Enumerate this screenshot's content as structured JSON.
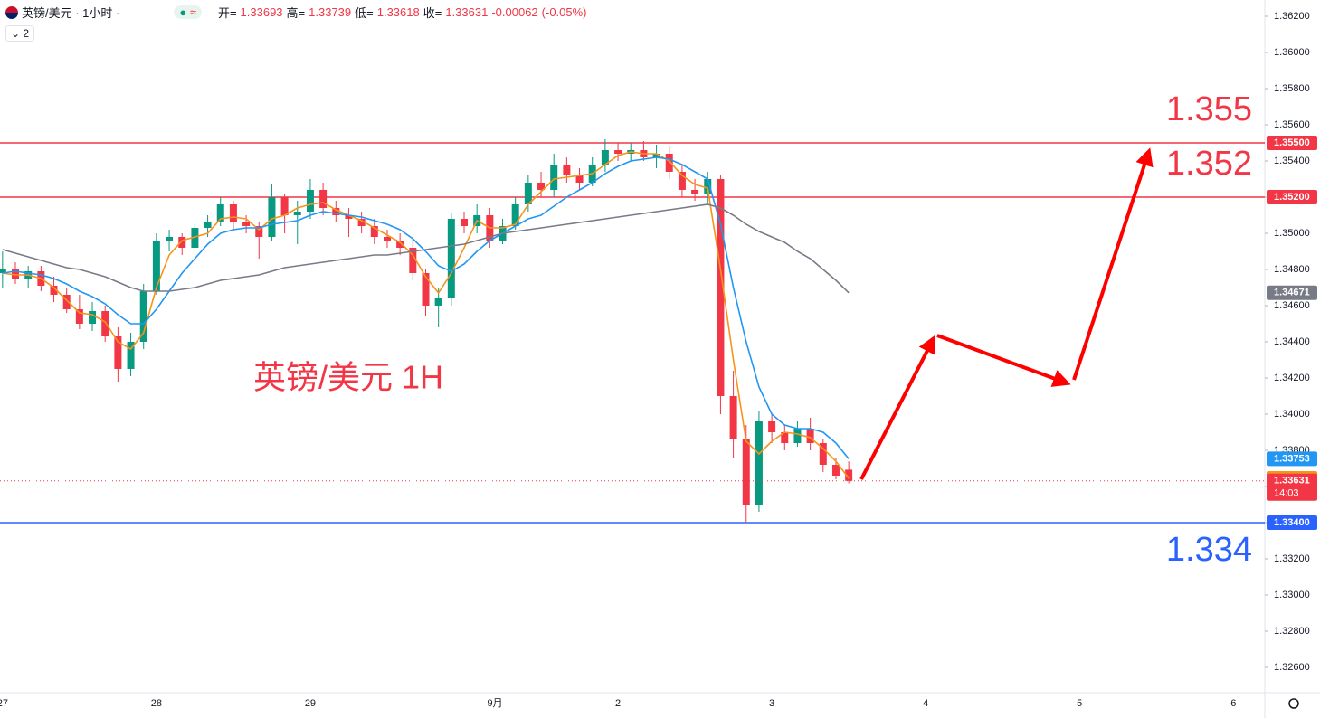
{
  "header": {
    "symbol": "英镑/美元 · 1小时 ·",
    "approx_icon": "≈",
    "open_label": "开=",
    "open": 1.33693,
    "high_label": "高=",
    "high": 1.33739,
    "low_label": "低=",
    "low": 1.33618,
    "close_label": "收=",
    "close": 1.33631,
    "change": -0.00062,
    "change_pct": "(-0.05%)",
    "indicators": 2
  },
  "chart_data": {
    "type": "candlestick",
    "up_color": "#089981",
    "down_color": "#f23645",
    "open": [
      1.3478,
      1.348,
      1.3475,
      1.3479,
      1.3471,
      1.3466,
      1.3458,
      1.345,
      1.3457,
      1.3443,
      1.3425,
      1.344,
      1.3468,
      1.3496,
      1.3498,
      1.3492,
      1.3503,
      1.3506,
      1.3516,
      1.3506,
      1.3504,
      1.3498,
      1.352,
      1.351,
      1.3512,
      1.3524,
      1.3514,
      1.351,
      1.3508,
      1.3504,
      1.3498,
      1.3496,
      1.3492,
      1.3478,
      1.346,
      1.3464,
      1.3508,
      1.3504,
      1.351,
      1.3496,
      1.3504,
      1.3516,
      1.3528,
      1.3524,
      1.3538,
      1.3532,
      1.3528,
      1.3538,
      1.3546,
      1.3544,
      1.3546,
      1.3542,
      1.3544,
      1.3534,
      1.3524,
      1.3522,
      1.353,
      1.341,
      1.3386,
      1.335,
      1.3396,
      1.339,
      1.3384,
      1.3392,
      1.3384,
      1.3372,
      1.33693
    ],
    "high": [
      1.349,
      1.3484,
      1.3482,
      1.3482,
      1.3476,
      1.347,
      1.3466,
      1.3462,
      1.346,
      1.3448,
      1.3445,
      1.3472,
      1.35,
      1.3502,
      1.35,
      1.3505,
      1.351,
      1.352,
      1.3518,
      1.351,
      1.3506,
      1.3527,
      1.3522,
      1.3518,
      1.353,
      1.3528,
      1.3518,
      1.3514,
      1.3512,
      1.3508,
      1.3502,
      1.35,
      1.3498,
      1.348,
      1.347,
      1.3511,
      1.3512,
      1.3516,
      1.3514,
      1.3508,
      1.352,
      1.3532,
      1.3534,
      1.3544,
      1.3542,
      1.3536,
      1.3542,
      1.3552,
      1.355,
      1.355,
      1.3551,
      1.3549,
      1.3548,
      1.3538,
      1.353,
      1.3534,
      1.3532,
      1.3424,
      1.3394,
      1.3402,
      1.34,
      1.3394,
      1.3396,
      1.3398,
      1.3386,
      1.3376,
      1.33739
    ],
    "low": [
      1.347,
      1.3472,
      1.347,
      1.3468,
      1.3462,
      1.3456,
      1.3447,
      1.3446,
      1.344,
      1.3418,
      1.3421,
      1.3436,
      1.3466,
      1.349,
      1.3488,
      1.349,
      1.3498,
      1.3504,
      1.3502,
      1.35,
      1.3486,
      1.3496,
      1.35,
      1.3494,
      1.3508,
      1.351,
      1.3506,
      1.3498,
      1.35,
      1.3494,
      1.3492,
      1.3488,
      1.3474,
      1.3454,
      1.3448,
      1.346,
      1.35,
      1.35,
      1.3492,
      1.3494,
      1.3502,
      1.3512,
      1.352,
      1.352,
      1.3528,
      1.3524,
      1.3526,
      1.3534,
      1.354,
      1.354,
      1.354,
      1.3536,
      1.353,
      1.352,
      1.3518,
      1.3516,
      1.34,
      1.3376,
      1.334,
      1.3346,
      1.3384,
      1.338,
      1.3382,
      1.338,
      1.3368,
      1.3364,
      1.33618
    ],
    "close": [
      1.348,
      1.3475,
      1.3479,
      1.3471,
      1.3466,
      1.3458,
      1.345,
      1.3457,
      1.3443,
      1.3425,
      1.344,
      1.3468,
      1.3496,
      1.3498,
      1.3492,
      1.3503,
      1.3506,
      1.3516,
      1.3506,
      1.3504,
      1.3498,
      1.352,
      1.351,
      1.3512,
      1.3524,
      1.3514,
      1.351,
      1.3508,
      1.3504,
      1.3498,
      1.3496,
      1.3492,
      1.3478,
      1.346,
      1.3464,
      1.3508,
      1.3504,
      1.351,
      1.3496,
      1.3504,
      1.3516,
      1.3528,
      1.3524,
      1.3538,
      1.3532,
      1.3528,
      1.3538,
      1.3546,
      1.3544,
      1.3546,
      1.3542,
      1.3544,
      1.3534,
      1.3524,
      1.3522,
      1.353,
      1.341,
      1.3386,
      1.335,
      1.3396,
      1.339,
      1.3384,
      1.3392,
      1.3384,
      1.3372,
      1.3366,
      1.33631
    ],
    "close_color": "#f23645",
    "countdown": "14:03",
    "series": [
      {
        "color": "#f7931a",
        "values": [
          1.3478,
          1.3477,
          1.3477,
          1.3475,
          1.347,
          1.3463,
          1.3456,
          1.3455,
          1.3451,
          1.344,
          1.3436,
          1.3445,
          1.347,
          1.3488,
          1.3496,
          1.3498,
          1.35,
          1.3508,
          1.3509,
          1.3508,
          1.3502,
          1.3508,
          1.351,
          1.3514,
          1.3516,
          1.3517,
          1.3513,
          1.351,
          1.3507,
          1.3503,
          1.3499,
          1.3495,
          1.3488,
          1.3476,
          1.3467,
          1.3478,
          1.3492,
          1.3507,
          1.3503,
          1.3503,
          1.3505,
          1.3516,
          1.3523,
          1.353,
          1.3531,
          1.3532,
          1.3533,
          1.3538,
          1.3543,
          1.3545,
          1.3544,
          1.3544,
          1.354,
          1.3532,
          1.3527,
          1.3525,
          1.348,
          1.343,
          1.3385,
          1.3378,
          1.3385,
          1.339,
          1.3389,
          1.3387,
          1.3381,
          1.3374,
          1.33645
        ]
      },
      {
        "color": "#2196f3",
        "values": [
          1.3478,
          1.3479,
          1.3478,
          1.3477,
          1.3475,
          1.3472,
          1.3468,
          1.3465,
          1.3461,
          1.3455,
          1.345,
          1.345,
          1.3458,
          1.3468,
          1.3478,
          1.3486,
          1.3494,
          1.35,
          1.3502,
          1.3503,
          1.3503,
          1.3505,
          1.3506,
          1.3507,
          1.351,
          1.3512,
          1.3511,
          1.351,
          1.3509,
          1.3507,
          1.3505,
          1.3502,
          1.3497,
          1.349,
          1.3482,
          1.3479,
          1.3483,
          1.349,
          1.3496,
          1.35,
          1.3504,
          1.3508,
          1.351,
          1.3515,
          1.352,
          1.3524,
          1.3528,
          1.3533,
          1.3537,
          1.354,
          1.3541,
          1.3542,
          1.3541,
          1.3538,
          1.3534,
          1.353,
          1.3505,
          1.347,
          1.344,
          1.3415,
          1.34,
          1.3394,
          1.3392,
          1.3392,
          1.339,
          1.3384,
          1.33753
        ]
      },
      {
        "color": "#787b86",
        "values": [
          1.3491,
          1.3489,
          1.3487,
          1.3485,
          1.3483,
          1.3481,
          1.348,
          1.3478,
          1.3476,
          1.3473,
          1.347,
          1.3468,
          1.3468,
          1.3468,
          1.3469,
          1.347,
          1.3472,
          1.3474,
          1.3475,
          1.3476,
          1.3477,
          1.3479,
          1.3481,
          1.3482,
          1.3483,
          1.3484,
          1.3485,
          1.3486,
          1.3487,
          1.3488,
          1.3488,
          1.3489,
          1.349,
          1.3491,
          1.3492,
          1.3493,
          1.3494,
          1.3496,
          1.3498,
          1.35,
          1.3501,
          1.3502,
          1.3503,
          1.3504,
          1.3505,
          1.3506,
          1.3507,
          1.3508,
          1.3509,
          1.351,
          1.3511,
          1.3512,
          1.3513,
          1.3514,
          1.3515,
          1.3516,
          1.3514,
          1.351,
          1.3505,
          1.3501,
          1.3498,
          1.3495,
          1.349,
          1.3486,
          1.348,
          1.3474,
          1.34671
        ]
      }
    ],
    "hlines": [
      {
        "value": 1.355,
        "label": "1.35500",
        "color": "#f23645"
      },
      {
        "value": 1.352,
        "label": "1.35200",
        "color": "#f23645"
      },
      {
        "value": 1.334,
        "label": "1.33400",
        "color": "#2962ff"
      }
    ],
    "annotations": [
      {
        "text": "1.355",
        "color": "#f23645"
      },
      {
        "text": "1.352",
        "color": "#f23645"
      },
      {
        "text": "1.334",
        "color": "#2962ff"
      },
      {
        "text": "英镑/美元 1H",
        "color": "#f23645"
      }
    ],
    "xlim": [
      -0.2,
      98.45
    ],
    "ylim": [
      1.3246,
      1.3629
    ],
    "xticks": [
      {
        "value": 0,
        "label": "27"
      },
      {
        "value": 12,
        "label": "28"
      },
      {
        "value": 24,
        "label": "29"
      },
      {
        "value": 38.4,
        "label": "9月"
      },
      {
        "value": 48,
        "label": "2"
      },
      {
        "value": 60,
        "label": "3"
      },
      {
        "value": 72,
        "label": "4"
      },
      {
        "value": 84,
        "label": "5"
      },
      {
        "value": 96,
        "label": "6"
      }
    ],
    "yticks": [
      {
        "value": 1.362,
        "label": "1.36200"
      },
      {
        "value": 1.36,
        "label": "1.36000"
      },
      {
        "value": 1.358,
        "label": "1.35800"
      },
      {
        "value": 1.356,
        "label": "1.35600"
      },
      {
        "value": 1.354,
        "label": "1.35400"
      },
      {
        "value": 1.352,
        "label": "1.35200"
      },
      {
        "value": 1.35,
        "label": "1.35000"
      },
      {
        "value": 1.348,
        "label": "1.34800"
      },
      {
        "value": 1.346,
        "label": "1.34600"
      },
      {
        "value": 1.344,
        "label": "1.34400"
      },
      {
        "value": 1.342,
        "label": "1.34200"
      },
      {
        "value": 1.34,
        "label": "1.34000"
      },
      {
        "value": 1.338,
        "label": "1.33800"
      },
      {
        "value": 1.336,
        "label": "1.33600"
      },
      {
        "value": 1.334,
        "label": "1.33400"
      },
      {
        "value": 1.332,
        "label": "1.33200"
      },
      {
        "value": 1.33,
        "label": "1.33000"
      },
      {
        "value": 1.328,
        "label": "1.32800"
      },
      {
        "value": 1.326,
        "label": "1.32600"
      }
    ],
    "grid": false
  }
}
